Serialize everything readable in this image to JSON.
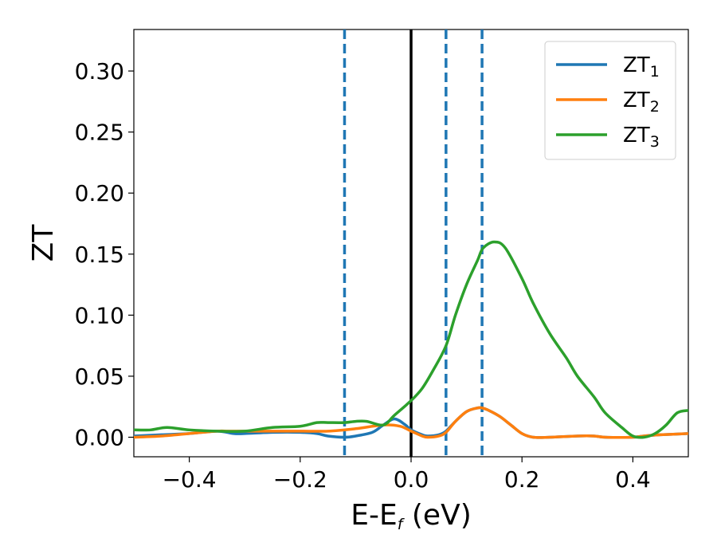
{
  "chart_data": {
    "type": "line",
    "xlabel": {
      "main": "E-E",
      "sub": "f",
      "tail": " (eV)"
    },
    "ylabel": "ZT",
    "xlim": [
      -0.5,
      0.5
    ],
    "ylim": [
      -0.016,
      0.334
    ],
    "x_ticks": [
      -0.4,
      -0.2,
      0.0,
      0.2,
      0.4
    ],
    "x_tick_labels": [
      "−0.4",
      "−0.2",
      "0.0",
      "0.2",
      "0.4"
    ],
    "y_ticks": [
      0.0,
      0.05,
      0.1,
      0.15,
      0.2,
      0.25,
      0.3
    ],
    "y_tick_labels": [
      "0.00",
      "0.05",
      "0.10",
      "0.15",
      "0.20",
      "0.25",
      "0.30"
    ],
    "grid": false,
    "legend_position": "top-right",
    "vertical_lines": [
      {
        "x": 0.0,
        "color": "#000000",
        "style": "solid"
      },
      {
        "x": -0.12,
        "color": "#1f77b4",
        "style": "dashed"
      },
      {
        "x": 0.063,
        "color": "#1f77b4",
        "style": "dashed"
      },
      {
        "x": 0.128,
        "color": "#1f77b4",
        "style": "dashed"
      }
    ],
    "series": [
      {
        "name": "ZT",
        "sub": "1",
        "color": "#1f77b4",
        "x": [
          -0.5,
          -0.45,
          -0.4,
          -0.35,
          -0.32,
          -0.3,
          -0.25,
          -0.2,
          -0.17,
          -0.15,
          -0.12,
          -0.1,
          -0.07,
          -0.05,
          -0.03,
          -0.01,
          0.0,
          0.02,
          0.03,
          0.05,
          0.063,
          0.08,
          0.1,
          0.12,
          0.128,
          0.14,
          0.16,
          0.18,
          0.2,
          0.22,
          0.25,
          0.3,
          0.33,
          0.35,
          0.4,
          0.42,
          0.45,
          0.5
        ],
        "y": [
          0.001,
          0.002,
          0.003,
          0.005,
          0.003,
          0.003,
          0.004,
          0.004,
          0.003,
          0.001,
          0.0,
          0.001,
          0.004,
          0.01,
          0.015,
          0.01,
          0.006,
          0.002,
          0.001,
          0.002,
          0.005,
          0.013,
          0.021,
          0.024,
          0.024,
          0.022,
          0.017,
          0.01,
          0.003,
          0.0,
          0.0,
          0.001,
          0.001,
          0.0,
          0.0,
          0.001,
          0.002,
          0.003
        ]
      },
      {
        "name": "ZT",
        "sub": "2",
        "color": "#ff7f0e",
        "x": [
          -0.5,
          -0.45,
          -0.4,
          -0.35,
          -0.33,
          -0.3,
          -0.25,
          -0.2,
          -0.15,
          -0.1,
          -0.05,
          -0.02,
          0.0,
          0.02,
          0.03,
          0.05,
          0.063,
          0.08,
          0.1,
          0.12,
          0.128,
          0.14,
          0.16,
          0.18,
          0.2,
          0.22,
          0.25,
          0.3,
          0.33,
          0.35,
          0.4,
          0.42,
          0.45,
          0.5
        ],
        "y": [
          0.0,
          0.001,
          0.003,
          0.005,
          0.005,
          0.005,
          0.005,
          0.005,
          0.005,
          0.007,
          0.01,
          0.009,
          0.005,
          0.001,
          0.0,
          0.001,
          0.004,
          0.013,
          0.021,
          0.024,
          0.024,
          0.022,
          0.017,
          0.01,
          0.003,
          0.0,
          0.0,
          0.001,
          0.001,
          0.0,
          0.0,
          0.001,
          0.002,
          0.003
        ]
      },
      {
        "name": "ZT",
        "sub": "3",
        "color": "#2ca02c",
        "x": [
          -0.5,
          -0.47,
          -0.44,
          -0.4,
          -0.35,
          -0.3,
          -0.25,
          -0.2,
          -0.17,
          -0.15,
          -0.12,
          -0.1,
          -0.08,
          -0.05,
          -0.03,
          0.0,
          0.02,
          0.04,
          0.063,
          0.08,
          0.1,
          0.12,
          0.13,
          0.15,
          0.17,
          0.2,
          0.22,
          0.25,
          0.28,
          0.3,
          0.33,
          0.35,
          0.38,
          0.4,
          0.42,
          0.44,
          0.46,
          0.48,
          0.5
        ],
        "y": [
          0.006,
          0.006,
          0.008,
          0.006,
          0.005,
          0.005,
          0.008,
          0.009,
          0.012,
          0.012,
          0.012,
          0.013,
          0.013,
          0.01,
          0.018,
          0.03,
          0.04,
          0.055,
          0.075,
          0.1,
          0.125,
          0.145,
          0.155,
          0.16,
          0.155,
          0.13,
          0.11,
          0.085,
          0.065,
          0.05,
          0.033,
          0.02,
          0.008,
          0.001,
          0.0,
          0.003,
          0.01,
          0.02,
          0.022
        ]
      }
    ]
  }
}
